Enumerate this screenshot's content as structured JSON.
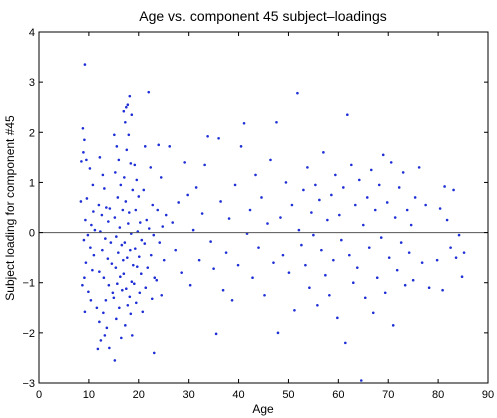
{
  "chart_data": {
    "type": "scatter",
    "title": "Age vs. component 45 subject–loadings",
    "xlabel": "Age",
    "ylabel": "Subject loading for component #45",
    "xlim": [
      0,
      90
    ],
    "ylim": [
      -3,
      4
    ],
    "xticks": [
      "0",
      "10",
      "20",
      "30",
      "40",
      "50",
      "60",
      "70",
      "80",
      "90"
    ],
    "yticks": [
      "−3",
      "−2",
      "−1",
      "0",
      "1",
      "2",
      "3",
      "4"
    ],
    "xtick_values": [
      0,
      10,
      20,
      30,
      40,
      50,
      60,
      70,
      80,
      90
    ],
    "ytick_values": [
      -3,
      -2,
      -1,
      0,
      1,
      2,
      3,
      4
    ],
    "reference_line_y": 0,
    "grid": false,
    "point_color": "#1f2fd6",
    "points": [
      [
        9.2,
        3.35
      ],
      [
        8.8,
        2.08
      ],
      [
        9.1,
        1.85
      ],
      [
        8.5,
        1.42
      ],
      [
        9.5,
        1.45
      ],
      [
        8.9,
        1.6
      ],
      [
        10.2,
        1.28
      ],
      [
        10.8,
        0.95
      ],
      [
        9.6,
        0.68
      ],
      [
        8.4,
        0.62
      ],
      [
        10.9,
        0.42
      ],
      [
        9.3,
        0.25
      ],
      [
        10.5,
        0.15
      ],
      [
        11.2,
        0.05
      ],
      [
        9.8,
        -0.05
      ],
      [
        9.0,
        -0.15
      ],
      [
        10.3,
        -0.3
      ],
      [
        11.0,
        -0.45
      ],
      [
        9.4,
        -0.6
      ],
      [
        10.7,
        -0.75
      ],
      [
        9.1,
        -0.9
      ],
      [
        8.7,
        -1.05
      ],
      [
        9.9,
        -1.18
      ],
      [
        10.4,
        -1.35
      ],
      [
        9.2,
        -1.58
      ],
      [
        11.6,
        -1.5
      ],
      [
        12.1,
        -1.78
      ],
      [
        11.8,
        -2.32
      ],
      [
        12.4,
        -2.15
      ],
      [
        13.2,
        -2.05
      ],
      [
        12.9,
        -1.6
      ],
      [
        13.6,
        -1.9
      ],
      [
        14.1,
        -2.3
      ],
      [
        12.2,
        1.5
      ],
      [
        12.8,
        1.15
      ],
      [
        13.1,
        0.88
      ],
      [
        12.0,
        0.55
      ],
      [
        13.5,
        0.5
      ],
      [
        14.2,
        0.48
      ],
      [
        12.6,
        0.35
      ],
      [
        13.9,
        0.22
      ],
      [
        12.3,
        0.02
      ],
      [
        13.3,
        -0.12
      ],
      [
        14.4,
        -0.2
      ],
      [
        12.7,
        -0.35
      ],
      [
        13.8,
        -0.52
      ],
      [
        14.6,
        -0.62
      ],
      [
        12.1,
        -0.78
      ],
      [
        13.0,
        -0.9
      ],
      [
        14.0,
        -1.05
      ],
      [
        14.8,
        -1.2
      ],
      [
        13.4,
        -1.35
      ],
      [
        15.1,
        1.95
      ],
      [
        15.6,
        1.72
      ],
      [
        16.0,
        1.45
      ],
      [
        15.3,
        1.2
      ],
      [
        16.4,
        0.95
      ],
      [
        15.8,
        0.7
      ],
      [
        16.8,
        0.45
      ],
      [
        15.2,
        0.3
      ],
      [
        16.2,
        0.1
      ],
      [
        15.5,
        -0.08
      ],
      [
        16.6,
        -0.25
      ],
      [
        15.9,
        -0.4
      ],
      [
        16.9,
        -0.55
      ],
      [
        15.4,
        -0.7
      ],
      [
        16.3,
        -0.88
      ],
      [
        15.7,
        -1.02
      ],
      [
        16.7,
        -1.15
      ],
      [
        15.0,
        -1.3
      ],
      [
        16.1,
        -1.5
      ],
      [
        15.5,
        -1.72
      ],
      [
        16.5,
        -2.1
      ],
      [
        15.2,
        -2.55
      ],
      [
        17.0,
        2.42
      ],
      [
        17.5,
        2.5
      ],
      [
        18.2,
        2.72
      ],
      [
        17.8,
        2.55
      ],
      [
        18.6,
        2.35
      ],
      [
        17.3,
        2.2
      ],
      [
        18.0,
        1.95
      ],
      [
        17.6,
        1.65
      ],
      [
        18.4,
        1.38
      ],
      [
        17.1,
        1.1
      ],
      [
        18.8,
        0.85
      ],
      [
        17.4,
        0.62
      ],
      [
        18.1,
        0.4
      ],
      [
        17.9,
        0.18
      ],
      [
        18.5,
        -0.02
      ],
      [
        17.2,
        -0.2
      ],
      [
        18.3,
        -0.35
      ],
      [
        17.7,
        -0.5
      ],
      [
        18.9,
        -0.65
      ],
      [
        17.0,
        -0.82
      ],
      [
        18.6,
        -0.98
      ],
      [
        17.5,
        -1.12
      ],
      [
        18.2,
        -1.28
      ],
      [
        17.8,
        -1.45
      ],
      [
        18.4,
        -1.62
      ],
      [
        17.3,
        -1.85
      ],
      [
        18.7,
        -2.05
      ],
      [
        19.2,
        1.35
      ],
      [
        19.6,
        1.05
      ],
      [
        20.0,
        0.72
      ],
      [
        19.4,
        0.45
      ],
      [
        20.3,
        0.2
      ],
      [
        19.8,
        0.02
      ],
      [
        20.6,
        -0.15
      ],
      [
        19.3,
        -0.32
      ],
      [
        20.1,
        -0.48
      ],
      [
        19.7,
        -0.68
      ],
      [
        20.5,
        -0.82
      ],
      [
        19.1,
        -1.02
      ],
      [
        20.2,
        -1.2
      ],
      [
        19.5,
        -1.4
      ],
      [
        20.8,
        -1.58
      ],
      [
        22.0,
        2.8
      ],
      [
        21.3,
        1.72
      ],
      [
        22.4,
        1.3
      ],
      [
        21.0,
        0.85
      ],
      [
        22.8,
        0.55
      ],
      [
        21.6,
        0.25
      ],
      [
        22.1,
        0.08
      ],
      [
        23.0,
        -0.05
      ],
      [
        21.2,
        -0.22
      ],
      [
        22.5,
        -0.45
      ],
      [
        21.8,
        -0.7
      ],
      [
        23.2,
        -0.9
      ],
      [
        21.4,
        -1.1
      ],
      [
        22.7,
        -1.32
      ],
      [
        23.1,
        -2.4
      ],
      [
        24.0,
        1.75
      ],
      [
        24.5,
        1.1
      ],
      [
        23.8,
        0.45
      ],
      [
        24.8,
        0.12
      ],
      [
        24.2,
        -0.2
      ],
      [
        25.1,
        -0.55
      ],
      [
        23.6,
        -0.95
      ],
      [
        24.6,
        -1.25
      ],
      [
        25.5,
        0.35
      ],
      [
        26.2,
        1.72
      ],
      [
        26.8,
        0.2
      ],
      [
        27.4,
        -0.35
      ],
      [
        28.0,
        0.6
      ],
      [
        28.6,
        -0.8
      ],
      [
        29.2,
        1.4
      ],
      [
        29.8,
        0.75
      ],
      [
        30.3,
        -1.05
      ],
      [
        30.9,
        0.05
      ],
      [
        31.5,
        0.9
      ],
      [
        32.1,
        -0.55
      ],
      [
        32.7,
        0.38
      ],
      [
        33.2,
        1.35
      ],
      [
        33.8,
        1.92
      ],
      [
        34.4,
        -0.18
      ],
      [
        35.0,
        -0.72
      ],
      [
        35.5,
        -2.02
      ],
      [
        36.0,
        1.88
      ],
      [
        36.4,
        0.62
      ],
      [
        36.9,
        -1.15
      ],
      [
        37.5,
        -0.4
      ],
      [
        38.1,
        0.28
      ],
      [
        38.7,
        -1.35
      ],
      [
        39.3,
        0.95
      ],
      [
        39.9,
        -0.65
      ],
      [
        40.5,
        1.72
      ],
      [
        41.1,
        2.18
      ],
      [
        41.7,
        -0.02
      ],
      [
        42.3,
        0.45
      ],
      [
        42.8,
        -0.9
      ],
      [
        43.4,
        1.15
      ],
      [
        44.0,
        -0.3
      ],
      [
        44.6,
        0.7
      ],
      [
        45.2,
        -1.25
      ],
      [
        45.8,
        0.18
      ],
      [
        46.4,
        1.45
      ],
      [
        47.0,
        -0.6
      ],
      [
        47.6,
        2.2
      ],
      [
        47.9,
        -2.0
      ],
      [
        48.4,
        0.3
      ],
      [
        48.9,
        -0.45
      ],
      [
        49.5,
        1.0
      ],
      [
        50.1,
        -0.8
      ],
      [
        50.7,
        0.55
      ],
      [
        51.2,
        -1.55
      ],
      [
        51.8,
        2.78
      ],
      [
        52.1,
        0.05
      ],
      [
        52.6,
        -0.25
      ],
      [
        53.0,
        0.85
      ],
      [
        53.4,
        -0.65
      ],
      [
        53.8,
        1.3
      ],
      [
        54.2,
        -1.1
      ],
      [
        54.6,
        0.4
      ],
      [
        55.0,
        -0.05
      ],
      [
        55.4,
        0.95
      ],
      [
        55.8,
        -1.45
      ],
      [
        56.2,
        0.65
      ],
      [
        56.6,
        -0.35
      ],
      [
        57.0,
        1.6
      ],
      [
        57.4,
        -0.85
      ],
      [
        57.8,
        0.25
      ],
      [
        58.2,
        -1.25
      ],
      [
        58.6,
        0.75
      ],
      [
        59.0,
        -0.55
      ],
      [
        59.4,
        1.15
      ],
      [
        59.8,
        -1.7
      ],
      [
        60.2,
        0.35
      ],
      [
        60.6,
        -0.15
      ],
      [
        61.0,
        0.9
      ],
      [
        61.4,
        -2.2
      ],
      [
        61.8,
        2.35
      ],
      [
        62.2,
        -0.45
      ],
      [
        62.6,
        1.35
      ],
      [
        63.0,
        -1.0
      ],
      [
        63.4,
        0.55
      ],
      [
        63.8,
        -0.7
      ],
      [
        64.2,
        1.05
      ],
      [
        64.6,
        -2.95
      ],
      [
        65.0,
        0.15
      ],
      [
        65.4,
        -1.3
      ],
      [
        65.8,
        0.7
      ],
      [
        66.2,
        -0.3
      ],
      [
        66.6,
        1.25
      ],
      [
        67.0,
        -1.6
      ],
      [
        67.4,
        0.45
      ],
      [
        67.8,
        -0.9
      ],
      [
        68.2,
        0.95
      ],
      [
        68.6,
        -0.1
      ],
      [
        69.0,
        1.55
      ],
      [
        69.4,
        -1.2
      ],
      [
        69.8,
        0.6
      ],
      [
        70.2,
        -0.5
      ],
      [
        70.6,
        1.4
      ],
      [
        71.0,
        -1.85
      ],
      [
        71.4,
        0.3
      ],
      [
        71.8,
        -0.75
      ],
      [
        72.2,
        0.9
      ],
      [
        72.6,
        -0.2
      ],
      [
        73.0,
        1.2
      ],
      [
        73.4,
        -1.05
      ],
      [
        73.8,
        0.45
      ],
      [
        74.2,
        -0.4
      ],
      [
        74.6,
        0.15
      ],
      [
        75.0,
        -0.95
      ],
      [
        75.4,
        0.7
      ],
      [
        76.2,
        1.3
      ],
      [
        76.8,
        -0.6
      ],
      [
        77.5,
        0.55
      ],
      [
        78.2,
        -1.1
      ],
      [
        79.8,
        -0.55
      ],
      [
        80.4,
        0.48
      ],
      [
        80.9,
        -1.15
      ],
      [
        81.3,
        0.92
      ],
      [
        81.8,
        0.25
      ],
      [
        82.5,
        -0.3
      ],
      [
        83.1,
        0.85
      ],
      [
        83.6,
        -0.5
      ],
      [
        84.2,
        -0.05
      ],
      [
        84.8,
        -0.88
      ],
      [
        85.2,
        -0.4
      ]
    ]
  }
}
